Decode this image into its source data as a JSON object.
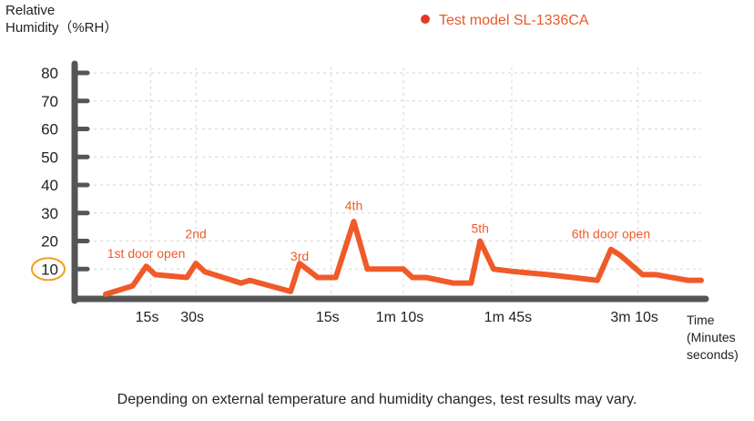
{
  "chart_data": {
    "type": "line",
    "title": "",
    "ylabel_line1": "Relative",
    "ylabel_line2": "Humidity（%RH）",
    "xlabel_lines": [
      "Time",
      "(Minutes",
      "seconds)"
    ],
    "legend": "Test model SL-1336CA",
    "ylim": [
      0,
      80
    ],
    "yticks": [
      10,
      20,
      30,
      40,
      50,
      60,
      70,
      80
    ],
    "highlighted_ytick": 10,
    "xticks": [
      {
        "label": "15s",
        "x": 0.5
      },
      {
        "label": "30s",
        "x": 1.0
      },
      {
        "label": "15s",
        "x": 2.5
      },
      {
        "label": "1m 10s",
        "x": 3.3
      },
      {
        "label": "1m 45s",
        "x": 4.5
      },
      {
        "label": "3m 10s",
        "x": 5.9
      }
    ],
    "grid": true,
    "series": [
      {
        "name": "Test model SL-1336CA",
        "color": "#f05a28",
        "points": [
          [
            0,
            1
          ],
          [
            0.3,
            4
          ],
          [
            0.45,
            11
          ],
          [
            0.55,
            8
          ],
          [
            0.9,
            7
          ],
          [
            1.0,
            12
          ],
          [
            1.1,
            9
          ],
          [
            1.5,
            5
          ],
          [
            1.6,
            6
          ],
          [
            2.05,
            2
          ],
          [
            2.15,
            12
          ],
          [
            2.35,
            7
          ],
          [
            2.55,
            7
          ],
          [
            2.75,
            27
          ],
          [
            2.9,
            10
          ],
          [
            3.3,
            10
          ],
          [
            3.4,
            7
          ],
          [
            3.55,
            7
          ],
          [
            3.85,
            5
          ],
          [
            4.05,
            5
          ],
          [
            4.15,
            20
          ],
          [
            4.3,
            10
          ],
          [
            4.55,
            9
          ],
          [
            4.9,
            8
          ],
          [
            5.45,
            6
          ],
          [
            5.6,
            17
          ],
          [
            5.7,
            15
          ],
          [
            5.95,
            8
          ],
          [
            6.1,
            8
          ],
          [
            6.45,
            6
          ],
          [
            6.6,
            6
          ]
        ]
      }
    ],
    "annotations": [
      {
        "text": "1st door open",
        "x": 0.45,
        "y": 14
      },
      {
        "text": "2nd",
        "x": 1.0,
        "y": 21
      },
      {
        "text": "3rd",
        "x": 2.15,
        "y": 13
      },
      {
        "text": "4th",
        "x": 2.75,
        "y": 31
      },
      {
        "text": "5th",
        "x": 4.15,
        "y": 23
      },
      {
        "text": "6th door open",
        "x": 5.6,
        "y": 21
      }
    ]
  },
  "footnote": "Depending on external temperature and humidity changes, test results may vary."
}
